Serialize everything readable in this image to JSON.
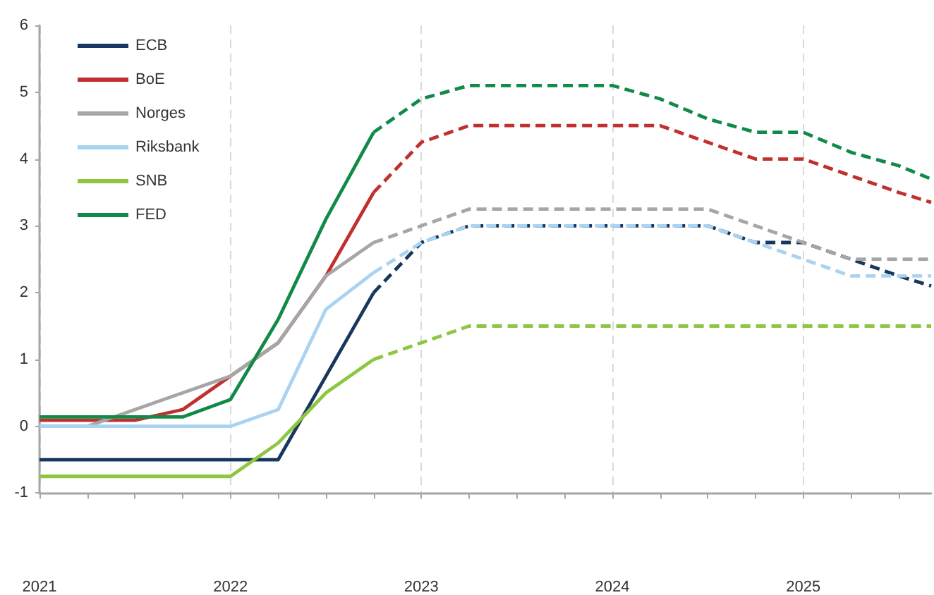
{
  "chart_data": {
    "type": "line",
    "xlim": [
      2021,
      2025.67
    ],
    "ylim": [
      -1,
      6
    ],
    "xticks": [
      2021,
      {
        "value": 2021.25,
        "label": null
      },
      {
        "value": 2021.5,
        "label": null
      },
      {
        "value": 2021.75,
        "label": null
      },
      2022,
      {
        "value": 2022.25,
        "label": null
      },
      {
        "value": 2022.5,
        "label": null
      },
      {
        "value": 2022.75,
        "label": null
      },
      2023,
      {
        "value": 2023.25,
        "label": null
      },
      {
        "value": 2023.5,
        "label": null
      },
      {
        "value": 2023.75,
        "label": null
      },
      2024,
      {
        "value": 2024.25,
        "label": null
      },
      {
        "value": 2024.5,
        "label": null
      },
      {
        "value": 2024.75,
        "label": null
      },
      2025,
      {
        "value": 2025.25,
        "label": null
      },
      {
        "value": 2025.5,
        "label": null
      }
    ],
    "yticks": [
      -1,
      0,
      1,
      2,
      3,
      4,
      5,
      6
    ],
    "grid": "x",
    "legend": "top left",
    "marker": "none",
    "series": [
      {
        "name": "ECB",
        "color": "#17375e",
        "line_style": "solid",
        "x": [
          2021,
          2021.25,
          2021.5,
          2021.75,
          2022,
          2022.25,
          2022.5,
          2022.75
        ],
        "values": [
          -0.5,
          -0.5,
          -0.5,
          -0.5,
          -0.5,
          -0.5,
          0.75,
          2.0
        ]
      },
      {
        "name": "BoE",
        "color": "#c0302e",
        "line_style": "solid",
        "x": [
          2021,
          2021.25,
          2021.5,
          2021.75,
          2022,
          2022.25,
          2022.5,
          2022.75
        ],
        "values": [
          0.09,
          0.09,
          0.09,
          0.25,
          0.75,
          1.25,
          2.25,
          3.5
        ]
      },
      {
        "name": "Norges",
        "color": "#a6a6a6",
        "line_style": "solid",
        "x": [
          2021,
          2021.25,
          2021.5,
          2021.75,
          2022,
          2022.25,
          2022.5,
          2022.75
        ],
        "values": [
          0,
          0,
          0.25,
          0.5,
          0.75,
          1.25,
          2.25,
          2.75
        ]
      },
      {
        "name": "Riksbank",
        "color": "#a9d3f0",
        "line_style": "solid",
        "x": [
          2021,
          2021.25,
          2021.5,
          2021.75,
          2022,
          2022.25,
          2022.5,
          2022.75
        ],
        "values": [
          0,
          0,
          0,
          0,
          0,
          0.25,
          1.75,
          2.3
        ]
      },
      {
        "name": "SNB",
        "color": "#8dc63f",
        "line_style": "solid",
        "x": [
          2021,
          2021.25,
          2021.5,
          2021.75,
          2022,
          2022.25,
          2022.5,
          2022.75
        ],
        "values": [
          -0.75,
          -0.75,
          -0.75,
          -0.75,
          -0.75,
          -0.25,
          0.5,
          1.0
        ]
      },
      {
        "name": "FED",
        "color": "#128a47",
        "line_style": "solid",
        "x": [
          2021,
          2021.25,
          2021.5,
          2021.75,
          2022,
          2022.25,
          2022.5,
          2022.75
        ],
        "values": [
          0.14,
          0.14,
          0.14,
          0.14,
          0.4,
          1.6,
          3.1,
          4.4
        ]
      },
      {
        "color": "#17375e",
        "line_style": "dashed",
        "x": [
          2022.75,
          2023,
          2023.25,
          2023.5,
          2023.75,
          2024,
          2024.25,
          2024.5,
          2024.75,
          2025,
          2025.25,
          2025.5,
          2025.67
        ],
        "values": [
          2.0,
          2.75,
          3.0,
          3.0,
          3.0,
          3.0,
          3.0,
          3.0,
          2.75,
          2.75,
          2.5,
          2.25,
          2.1
        ]
      },
      {
        "color": "#c0302e",
        "line_style": "dashed",
        "x": [
          2022.75,
          2023,
          2023.25,
          2023.5,
          2023.75,
          2024,
          2024.25,
          2024.5,
          2024.75,
          2025,
          2025.25,
          2025.5,
          2025.67
        ],
        "values": [
          3.5,
          4.25,
          4.5,
          4.5,
          4.5,
          4.5,
          4.5,
          4.25,
          4.0,
          4.0,
          3.75,
          3.5,
          3.35
        ]
      },
      {
        "color": "#a6a6a6",
        "line_style": "dashed",
        "x": [
          2022.75,
          2023,
          2023.25,
          2023.5,
          2023.75,
          2024,
          2024.25,
          2024.5,
          2024.75,
          2025,
          2025.25,
          2025.5,
          2025.67
        ],
        "values": [
          2.75,
          3.0,
          3.25,
          3.25,
          3.25,
          3.25,
          3.25,
          3.25,
          3.0,
          2.75,
          2.5,
          2.5,
          2.5
        ]
      },
      {
        "color": "#a9d3f0",
        "line_style": "dashed",
        "x": [
          2022.75,
          2023,
          2023.25,
          2023.5,
          2023.75,
          2024,
          2024.25,
          2024.5,
          2024.75,
          2025,
          2025.25,
          2025.5,
          2025.67
        ],
        "values": [
          2.3,
          2.75,
          3.0,
          3.0,
          3.0,
          3.0,
          3.0,
          3.0,
          2.75,
          2.5,
          2.25,
          2.25,
          2.25
        ]
      },
      {
        "color": "#8dc63f",
        "line_style": "dashed",
        "x": [
          2022.75,
          2023,
          2023.25,
          2023.5,
          2023.75,
          2024,
          2024.25,
          2024.5,
          2024.75,
          2025,
          2025.25,
          2025.5,
          2025.67
        ],
        "values": [
          1.0,
          1.25,
          1.5,
          1.5,
          1.5,
          1.5,
          1.5,
          1.5,
          1.5,
          1.5,
          1.5,
          1.5,
          1.5
        ]
      },
      {
        "color": "#128a47",
        "line_style": "dashed",
        "x": [
          2022.75,
          2023,
          2023.25,
          2023.5,
          2023.75,
          2024,
          2024.25,
          2024.5,
          2024.75,
          2025,
          2025.25,
          2025.5,
          2025.67
        ],
        "values": [
          4.4,
          4.9,
          5.1,
          5.1,
          5.1,
          5.1,
          4.9,
          4.6,
          4.4,
          4.4,
          4.1,
          3.9,
          3.7
        ]
      }
    ]
  }
}
